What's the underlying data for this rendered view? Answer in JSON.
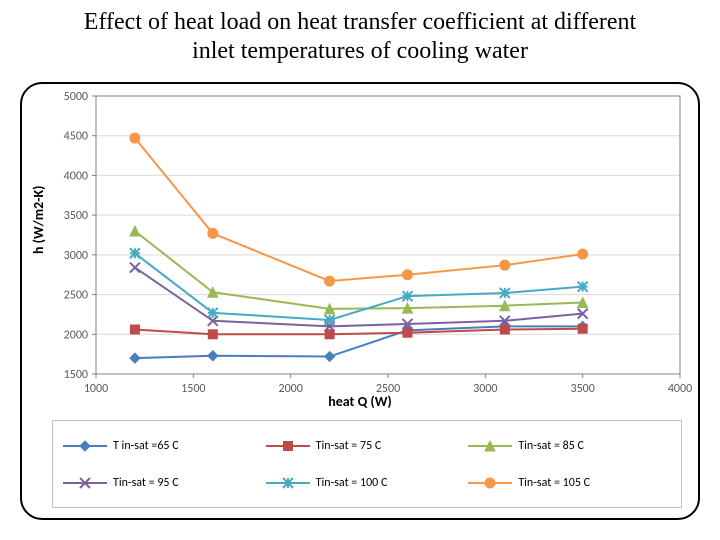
{
  "title": "Effect of heat load on heat transfer coefficient at different inlet temperatures of cooling water",
  "chart": {
    "type": "line",
    "background_color": "#ffffff",
    "card_border_color": "#000000",
    "card_border_radius": 22,
    "plot_border_color": "#808080",
    "grid_color": "#d9d9d9",
    "tick_label_color": "#595959",
    "tick_fontsize": 12,
    "xlabel": "heat Q (W)",
    "ylabel": "h (W/m2-K)",
    "label_fontsize": 14,
    "label_fontweight": "bold",
    "xlim": [
      1000,
      4000
    ],
    "ylim": [
      1500,
      5000
    ],
    "xticks": [
      1000,
      1500,
      2000,
      2500,
      3000,
      3500,
      4000
    ],
    "yticks": [
      1500,
      2000,
      2500,
      3000,
      3500,
      4000,
      4500,
      5000
    ],
    "line_width": 2.0,
    "marker_size": 6,
    "series": [
      {
        "name": "T in-sat =65 C",
        "label": "T in-sat =65 C",
        "color": "#4a7ebb",
        "marker": "diamond",
        "x": [
          1200,
          1600,
          2200,
          2600,
          3100,
          3500
        ],
        "y": [
          1700,
          1730,
          1720,
          2050,
          2100,
          2100
        ]
      },
      {
        "name": "Tin-sat = 75 C",
        "label": "Tin-sat = 75 C",
        "color": "#be4b48",
        "marker": "square",
        "x": [
          1200,
          1600,
          2200,
          2600,
          3100,
          3500
        ],
        "y": [
          2060,
          2000,
          2000,
          2020,
          2060,
          2070
        ]
      },
      {
        "name": "Tin-sat = 85 C",
        "label": "Tin-sat = 85 C",
        "color": "#98b954",
        "marker": "triangle",
        "x": [
          1200,
          1600,
          2200,
          2600,
          3100,
          3500
        ],
        "y": [
          3300,
          2530,
          2320,
          2330,
          2360,
          2400
        ]
      },
      {
        "name": "Tin-sat = 95 C",
        "label": "Tin-sat = 95 C",
        "color": "#7d60a0",
        "marker": "x",
        "x": [
          1200,
          1600,
          2200,
          2600,
          3100,
          3500
        ],
        "y": [
          2840,
          2170,
          2100,
          2130,
          2170,
          2260
        ]
      },
      {
        "name": "Tin-sat = 100 C",
        "label": "Tin-sat = 100 C",
        "color": "#46aac5",
        "marker": "asterisk",
        "x": [
          1200,
          1600,
          2200,
          2600,
          3100,
          3500
        ],
        "y": [
          3020,
          2270,
          2180,
          2480,
          2520,
          2600
        ]
      },
      {
        "name": "Tin-sat = 105 C",
        "label": "Tin-sat = 105 C",
        "color": "#f79646",
        "marker": "circle",
        "x": [
          1200,
          1600,
          2200,
          2600,
          3100,
          3500
        ],
        "y": [
          4470,
          3270,
          2670,
          2750,
          2870,
          3010
        ]
      }
    ],
    "legend": {
      "border_color": "#bfbfbf",
      "fontsize": 12,
      "columns": 3,
      "rows": 2
    }
  }
}
